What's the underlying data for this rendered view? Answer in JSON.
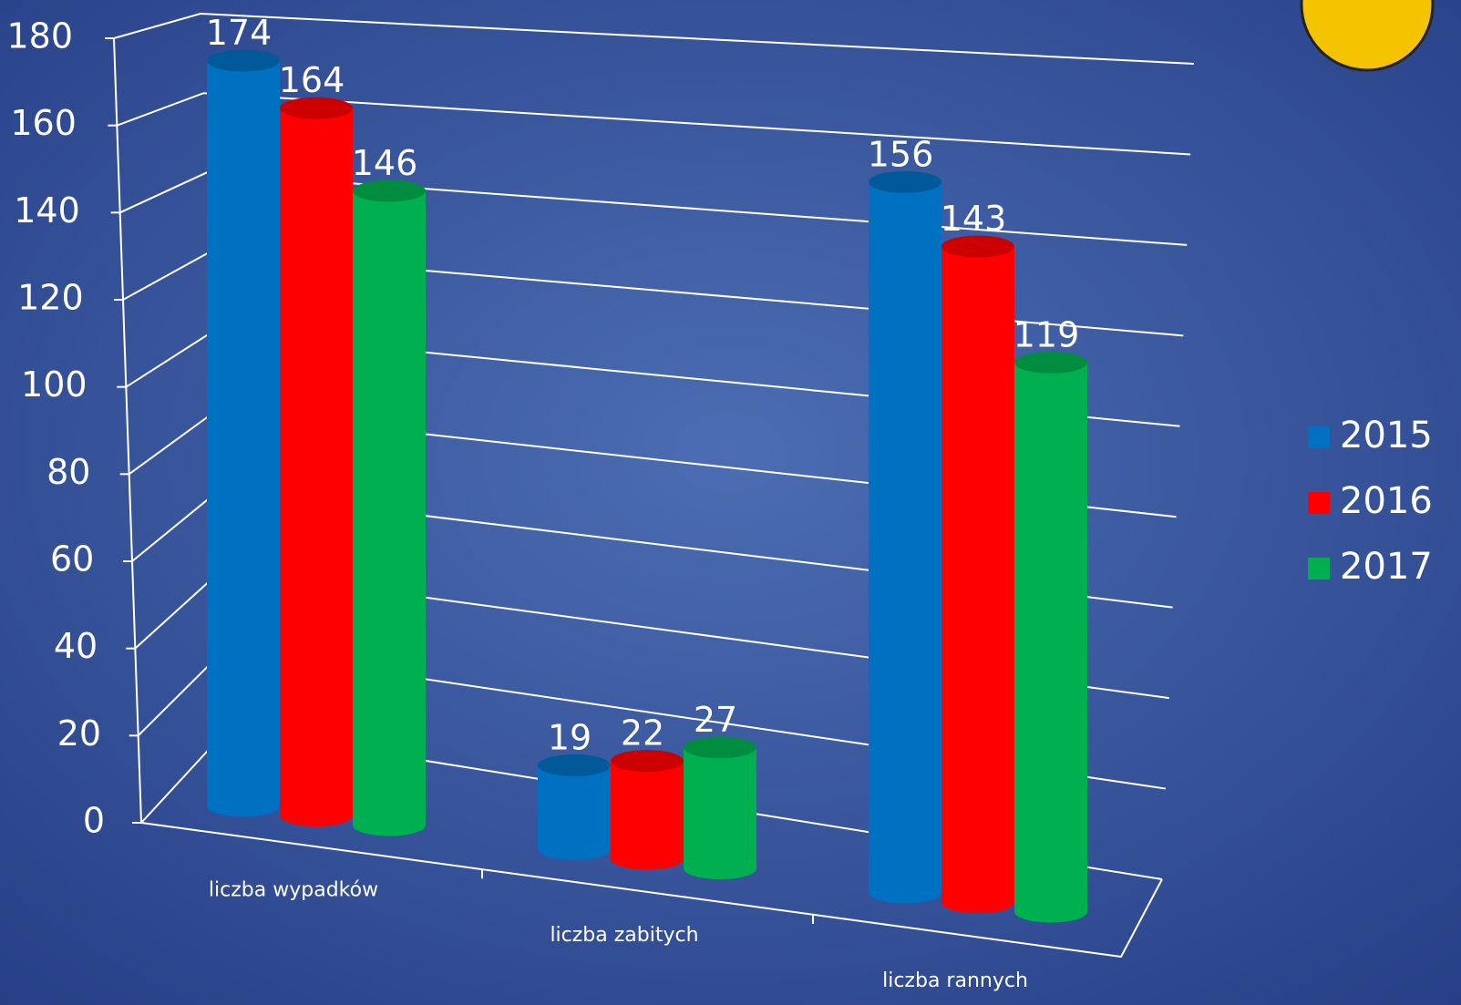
{
  "chart_data": {
    "type": "bar",
    "categories": [
      "liczba wypadków",
      "liczba zabitych",
      "liczba rannych"
    ],
    "series": [
      {
        "name": "2015",
        "color": "#0070c0",
        "values": [
          174,
          19,
          156
        ]
      },
      {
        "name": "2016",
        "color": "#ff0000",
        "values": [
          164,
          22,
          143
        ]
      },
      {
        "name": "2017",
        "color": "#00b050",
        "values": [
          146,
          27,
          119
        ]
      }
    ],
    "ylim": [
      0,
      180
    ],
    "yticks": [
      0,
      20,
      40,
      60,
      80,
      100,
      120,
      140,
      160,
      180
    ],
    "grid": true,
    "legend": "right"
  }
}
